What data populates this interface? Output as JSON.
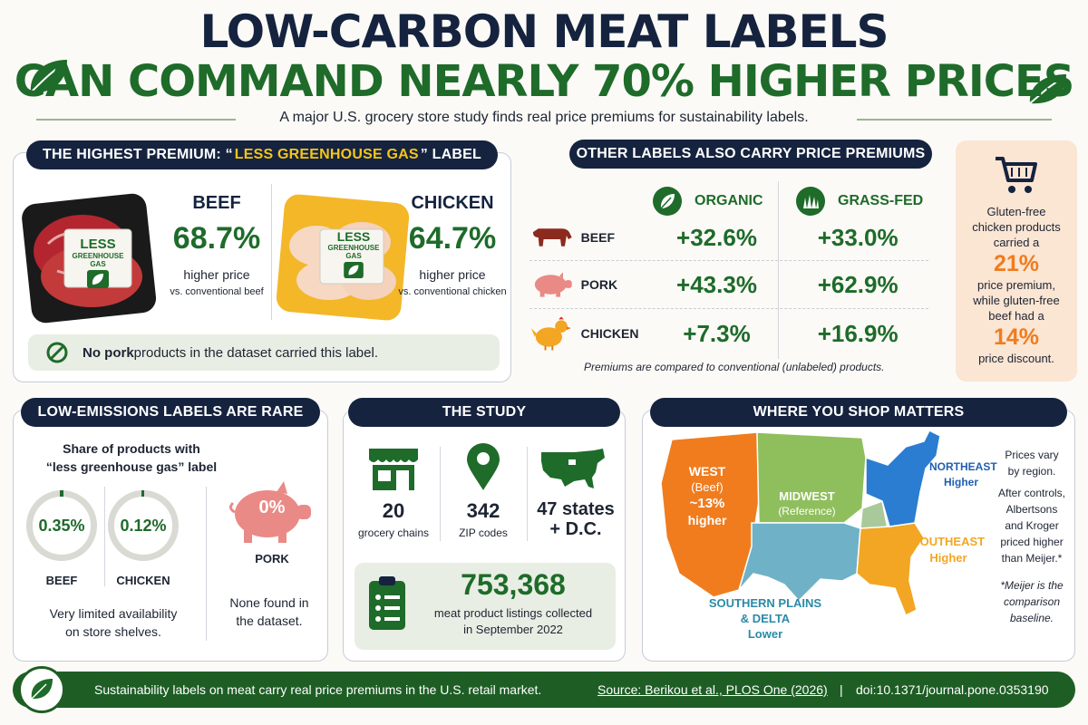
{
  "header": {
    "title_line1": "LOW-CARBON MEAT LABELS",
    "title_line2": "CAN COMMAND NEARLY 70% HIGHER PRICES",
    "subtitle": "A major U.S. grocery store study finds real price premiums for sustainability labels."
  },
  "highest_premium": {
    "heading_prefix": "THE HIGHEST PREMIUM:  “",
    "heading_highlight": "LESS GREENHOUSE GAS",
    "heading_suffix": "” LABEL",
    "package_label_line1": "LESS",
    "package_label_line2": "GREENHOUSE GAS",
    "beef": {
      "name": "BEEF",
      "value": "68.7%",
      "desc": "higher price",
      "vs": "vs. conventional beef"
    },
    "chicken": {
      "name": "CHICKEN",
      "value": "64.7%",
      "desc": "higher price",
      "vs": "vs. conventional chicken"
    },
    "note_bold": "No pork",
    "note_rest": " products in the dataset carried this label."
  },
  "other_labels": {
    "heading": "OTHER LABELS ALSO CARRY PRICE PREMIUMS",
    "columns": [
      "ORGANIC",
      "GRASS-FED"
    ],
    "rows": [
      {
        "name": "BEEF",
        "organic": "+32.6%",
        "grassfed": "+33.0%"
      },
      {
        "name": "PORK",
        "organic": "+43.3%",
        "grassfed": "+62.9%"
      },
      {
        "name": "CHICKEN",
        "organic": "+7.3%",
        "grassfed": "+16.9%"
      }
    ],
    "footnote": "Premiums are compared to conventional (unlabeled) products."
  },
  "gluten": {
    "line1": "Gluten-free",
    "line2": "chicken products",
    "line3": "carried a",
    "value1": "21%",
    "line4": "price premium,",
    "line5": "while gluten-free",
    "line6": "beef had a",
    "value2": "14%",
    "line7": "price discount."
  },
  "rare": {
    "heading": "LOW-EMISSIONS LABELS ARE RARE",
    "share_line1": "Share of products with",
    "share_line2": "“less greenhouse gas” label",
    "beef_value": "0.35%",
    "beef_label": "BEEF",
    "chicken_value": "0.12%",
    "chicken_label": "CHICKEN",
    "pork_value": "0%",
    "pork_label": "PORK",
    "availability_line1": "Very limited availability",
    "availability_line2": "on store shelves.",
    "none_line1": "None found in",
    "none_line2": "the dataset."
  },
  "study": {
    "heading": "THE STUDY",
    "chains_value": "20",
    "chains_label": "grocery chains",
    "zip_value": "342",
    "zip_label": "ZIP codes",
    "states_line1": "47 states",
    "states_line2": "+ D.C.",
    "listings_value": "753,368",
    "listings_line1": "meat product listings collected",
    "listings_line2": "in September 2022"
  },
  "shop": {
    "heading": "WHERE YOU SHOP MATTERS",
    "west_line1": "WEST",
    "west_line2": "(Beef)",
    "west_line3": "~13%",
    "west_line4": "higher",
    "midwest_line1": "MIDWEST",
    "midwest_line2": "(Reference)",
    "northeast_line1": "NORTHEAST",
    "northeast_line2": "Higher",
    "southeast_line1": "SOUTHEAST",
    "southeast_line2": "Higher",
    "plains_line1": "SOUTHERN PLAINS",
    "plains_line2": "& DELTA",
    "plains_line3": "Lower",
    "side_line1": "Prices vary",
    "side_line2": "by region.",
    "side_line3": "After controls,",
    "side_line4": "Albertsons",
    "side_line5": "and Kroger",
    "side_line6": "priced higher",
    "side_line7": "than Meijer.*",
    "note_line1": "*Meijer is the",
    "note_line2": "comparison",
    "note_line3": "baseline."
  },
  "footer": {
    "summary": "Sustainability labels on meat carry real price premiums in the U.S. retail market.",
    "source": "Source: Berikou et al., PLOS One (2026)",
    "separator": "|",
    "doi": "doi:10.1371/journal.pone.0353190"
  },
  "colors": {
    "navy": "#15233f",
    "green": "#1e6b2a",
    "orange": "#f07c1e",
    "highlight_yellow": "#f5c518"
  },
  "icons": [
    "leaf-icon",
    "shopping-cart-icon",
    "cow-icon",
    "pig-icon",
    "chicken-icon",
    "store-icon",
    "map-pin-icon",
    "us-map-icon",
    "clipboard-icon",
    "no-entry-icon"
  ]
}
